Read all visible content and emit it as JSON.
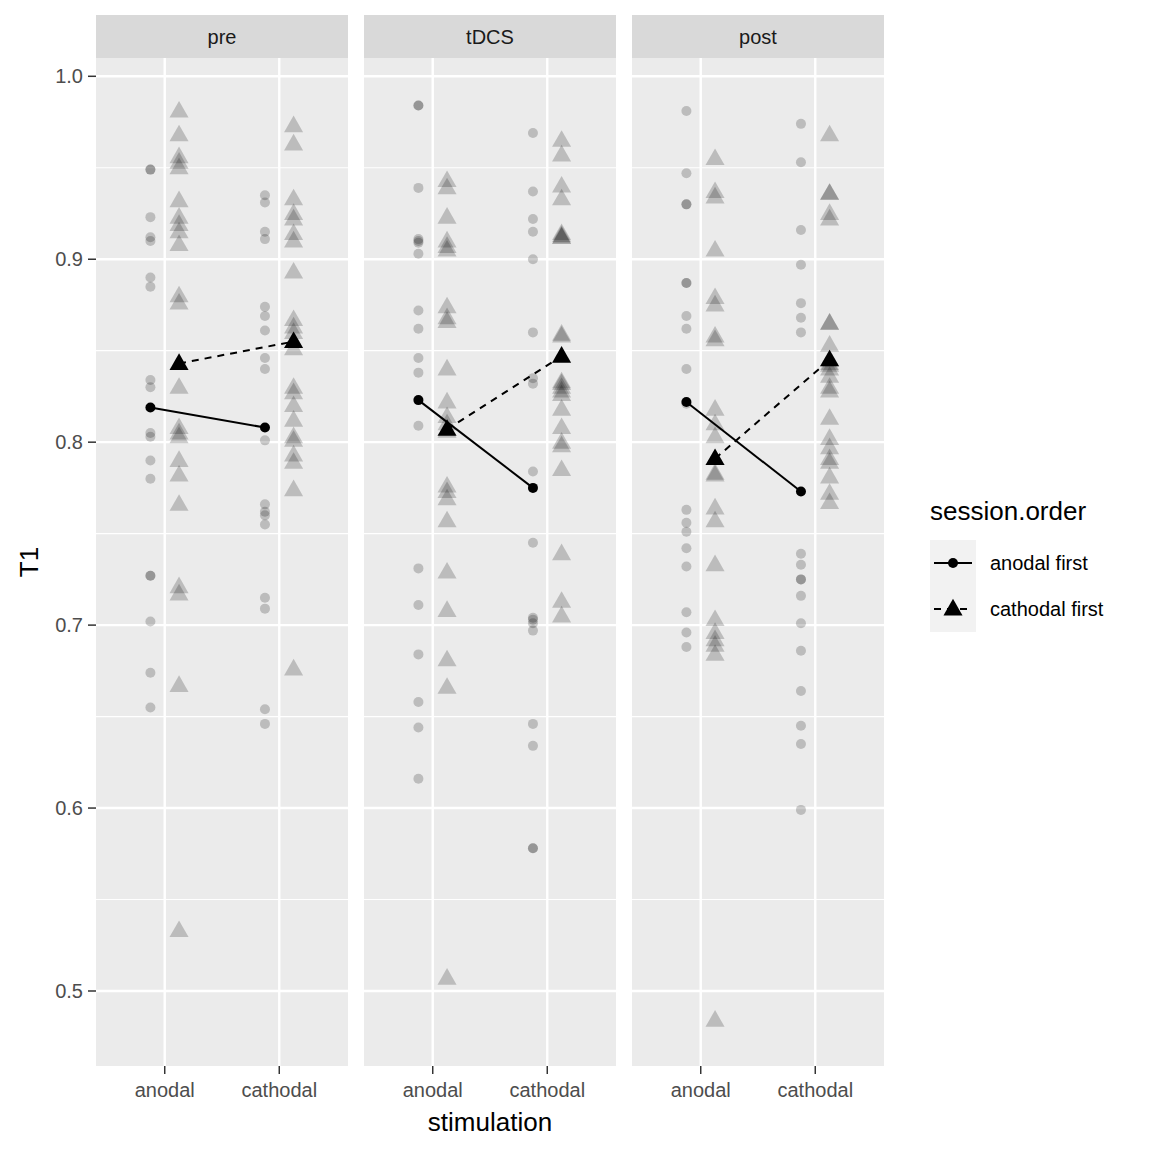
{
  "chart_data": {
    "type": "line",
    "x_label": "stimulation",
    "y_label": "T1",
    "legend_title": "session.order",
    "legend": "right",
    "grid": true,
    "categories": [
      "anodal",
      "cathodal"
    ],
    "ylim": [
      0.459,
      1.01
    ],
    "yticks": [
      0.5,
      0.6,
      0.7,
      0.8,
      0.9,
      {
        "value": 1,
        "label": "1.0"
      }
    ],
    "facets": [
      {
        "title": "pre",
        "series": [
          {
            "name": "anodal first",
            "color": "#000000",
            "marker": "circle",
            "line_style": "solid",
            "values": [
              0.819,
              0.808
            ],
            "points": [
              [
                0.949,
                0.949,
                0.923,
                0.912,
                0.91,
                0.89,
                0.885,
                0.834,
                0.83,
                0.805,
                0.803,
                0.79,
                0.78,
                0.727,
                0.727,
                0.702,
                0.674,
                0.655
              ],
              [
                0.935,
                0.931,
                0.915,
                0.911,
                0.874,
                0.869,
                0.861,
                0.846,
                0.84,
                0.801,
                0.766,
                0.762,
                0.76,
                0.755,
                0.715,
                0.709,
                0.654,
                0.646
              ]
            ]
          },
          {
            "name": "cathodal first",
            "color": "#000000",
            "marker": "triangle",
            "line_style": "dashed",
            "values": [
              0.843,
              0.855
            ],
            "points": [
              [
                0.981,
                0.968,
                0.956,
                0.953,
                0.95,
                0.932,
                0.923,
                0.919,
                0.915,
                0.908,
                0.88,
                0.876,
                0.83,
                0.808,
                0.805,
                0.803,
                0.79,
                0.782,
                0.766,
                0.721,
                0.717,
                0.667,
                0.533
              ],
              [
                0.973,
                0.963,
                0.933,
                0.925,
                0.922,
                0.914,
                0.91,
                0.893,
                0.867,
                0.863,
                0.86,
                0.855,
                0.851,
                0.83,
                0.827,
                0.82,
                0.812,
                0.803,
                0.801,
                0.793,
                0.789,
                0.774,
                0.676
              ]
            ]
          }
        ]
      },
      {
        "title": "tDCS",
        "series": [
          {
            "name": "anodal first",
            "color": "#000000",
            "marker": "circle",
            "line_style": "solid",
            "values": [
              0.823,
              0.775
            ],
            "points": [
              [
                0.984,
                0.984,
                0.939,
                0.911,
                0.91,
                0.909,
                0.903,
                0.872,
                0.862,
                0.846,
                0.838,
                0.809,
                0.731,
                0.711,
                0.684,
                0.658,
                0.644,
                0.616
              ],
              [
                0.969,
                0.937,
                0.922,
                0.915,
                0.9,
                0.86,
                0.835,
                0.832,
                0.784,
                0.745,
                0.704,
                0.703,
                0.701,
                0.697,
                0.646,
                0.634,
                0.578,
                0.578
              ]
            ]
          },
          {
            "name": "cathodal first",
            "color": "#000000",
            "marker": "triangle",
            "line_style": "dashed",
            "values": [
              0.807,
              0.847
            ],
            "points": [
              [
                0.943,
                0.939,
                0.923,
                0.91,
                0.907,
                0.905,
                0.874,
                0.868,
                0.866,
                0.84,
                0.822,
                0.814,
                0.81,
                0.806,
                0.776,
                0.773,
                0.769,
                0.757,
                0.729,
                0.708,
                0.681,
                0.666,
                0.507
              ],
              [
                0.965,
                0.957,
                0.94,
                0.933,
                0.914,
                0.913,
                0.912,
                0.912,
                0.859,
                0.858,
                0.833,
                0.832,
                0.83,
                0.828,
                0.826,
                0.818,
                0.808,
                0.8,
                0.798,
                0.785,
                0.739,
                0.713,
                0.705
              ]
            ]
          }
        ]
      },
      {
        "title": "post",
        "series": [
          {
            "name": "anodal first",
            "color": "#000000",
            "marker": "circle",
            "line_style": "solid",
            "values": [
              0.822,
              0.773
            ],
            "points": [
              [
                0.981,
                0.947,
                0.93,
                0.93,
                0.887,
                0.887,
                0.869,
                0.862,
                0.84,
                0.821,
                0.763,
                0.756,
                0.751,
                0.742,
                0.732,
                0.707,
                0.696,
                0.688
              ],
              [
                0.974,
                0.953,
                0.916,
                0.897,
                0.876,
                0.868,
                0.86,
                0.739,
                0.733,
                0.725,
                0.725,
                0.716,
                0.701,
                0.686,
                0.664,
                0.645,
                0.635,
                0.599
              ]
            ]
          },
          {
            "name": "cathodal first",
            "color": "#000000",
            "marker": "triangle",
            "line_style": "dashed",
            "values": [
              0.791,
              0.845
            ],
            "points": [
              [
                0.955,
                0.937,
                0.934,
                0.905,
                0.879,
                0.875,
                0.858,
                0.856,
                0.818,
                0.81,
                0.803,
                0.791,
                0.783,
                0.782,
                0.764,
                0.757,
                0.733,
                0.703,
                0.696,
                0.692,
                0.689,
                0.684,
                0.484
              ],
              [
                0.968,
                0.936,
                0.936,
                0.925,
                0.922,
                0.865,
                0.865,
                0.853,
                0.845,
                0.843,
                0.842,
                0.84,
                0.836,
                0.83,
                0.828,
                0.813,
                0.802,
                0.797,
                0.791,
                0.789,
                0.781,
                0.772,
                0.767
              ]
            ]
          }
        ]
      }
    ]
  }
}
